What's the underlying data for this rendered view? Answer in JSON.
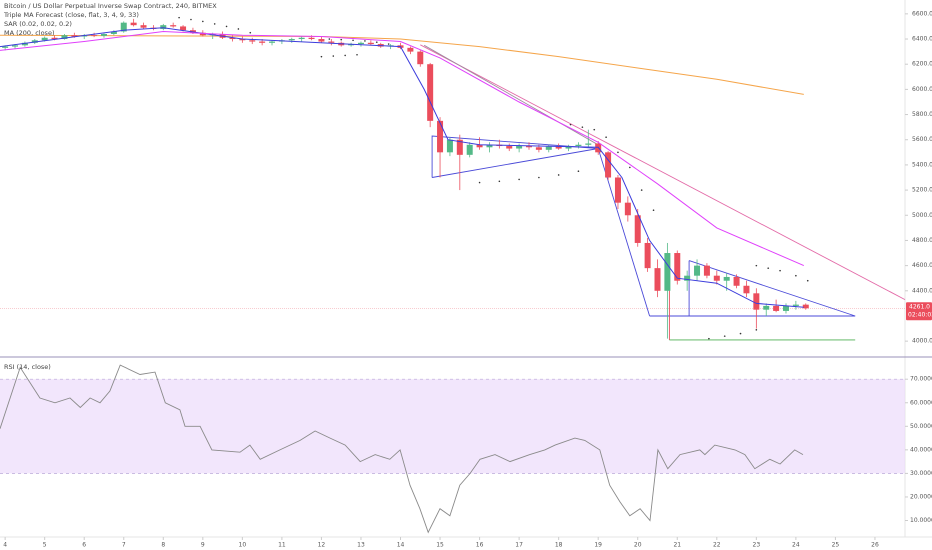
{
  "chart_data": {
    "type": "candlestick",
    "title": "Bitcoin / US Dollar Perpetual Inverse Swap Contract, 240, BITMEX",
    "up_color": "#53b987",
    "down_color": "#eb4d5c",
    "xlim": [
      3.87,
      26.76
    ],
    "xticks": [
      4,
      5,
      6,
      7,
      8,
      9,
      10,
      11,
      12,
      13,
      14,
      15,
      16,
      17,
      18,
      19,
      20,
      21,
      22,
      23,
      24,
      25,
      26
    ],
    "ylim": [
      3890,
      6710
    ],
    "yticks": [
      {
        "value": 4000,
        "label": "4000.0"
      },
      {
        "value": 4400,
        "label": "4400.0"
      },
      {
        "value": 4600,
        "label": "4600.0"
      },
      {
        "value": 4800,
        "label": "4800.0"
      },
      {
        "value": 5000,
        "label": "5000.0"
      },
      {
        "value": 5200,
        "label": "5200.0"
      },
      {
        "value": 5400,
        "label": "5400.0"
      },
      {
        "value": 5600,
        "label": "5600.0"
      },
      {
        "value": 5800,
        "label": "5800.0"
      },
      {
        "value": 6000,
        "label": "6000.0"
      },
      {
        "value": 6200,
        "label": "6200.0"
      },
      {
        "value": 6400,
        "label": "6400.0"
      },
      {
        "value": 6600,
        "label": "6600.0"
      }
    ],
    "grid": false,
    "last_price": {
      "value": 4261,
      "label": "4261.0"
    },
    "countdown": "02:40:03",
    "candles": [
      [
        4.0,
        6330,
        6350,
        6310,
        6340
      ],
      [
        4.25,
        6340,
        6360,
        6320,
        6350
      ],
      [
        4.5,
        6350,
        6380,
        6340,
        6370
      ],
      [
        4.75,
        6370,
        6400,
        6360,
        6390
      ],
      [
        5.0,
        6390,
        6420,
        6380,
        6410
      ],
      [
        5.25,
        6410,
        6430,
        6390,
        6400
      ],
      [
        5.5,
        6400,
        6440,
        6395,
        6430
      ],
      [
        5.75,
        6430,
        6450,
        6410,
        6420
      ],
      [
        6.0,
        6420,
        6440,
        6400,
        6430
      ],
      [
        6.25,
        6430,
        6450,
        6415,
        6425
      ],
      [
        6.5,
        6425,
        6445,
        6410,
        6440
      ],
      [
        6.75,
        6440,
        6470,
        6430,
        6460
      ],
      [
        7.0,
        6460,
        6540,
        6450,
        6530
      ],
      [
        7.25,
        6530,
        6560,
        6500,
        6510
      ],
      [
        7.5,
        6510,
        6530,
        6480,
        6490
      ],
      [
        7.75,
        6490,
        6510,
        6470,
        6480
      ],
      [
        8.0,
        6480,
        6520,
        6470,
        6510
      ],
      [
        8.25,
        6510,
        6530,
        6490,
        6500
      ],
      [
        8.5,
        6500,
        6510,
        6460,
        6470
      ],
      [
        8.75,
        6470,
        6490,
        6440,
        6450
      ],
      [
        9.0,
        6450,
        6470,
        6420,
        6430
      ],
      [
        9.25,
        6430,
        6450,
        6400,
        6440
      ],
      [
        9.5,
        6440,
        6460,
        6400,
        6410
      ],
      [
        9.75,
        6410,
        6430,
        6380,
        6400
      ],
      [
        10.0,
        6400,
        6420,
        6370,
        6390
      ],
      [
        10.25,
        6390,
        6410,
        6360,
        6380
      ],
      [
        10.5,
        6380,
        6400,
        6350,
        6370
      ],
      [
        10.75,
        6370,
        6390,
        6350,
        6380
      ],
      [
        11.0,
        6380,
        6400,
        6360,
        6390
      ],
      [
        11.25,
        6390,
        6410,
        6370,
        6400
      ],
      [
        11.5,
        6400,
        6420,
        6380,
        6410
      ],
      [
        11.75,
        6410,
        6430,
        6390,
        6400
      ],
      [
        12.0,
        6400,
        6420,
        6370,
        6380
      ],
      [
        12.25,
        6380,
        6400,
        6350,
        6370
      ],
      [
        12.5,
        6370,
        6380,
        6340,
        6350
      ],
      [
        12.75,
        6350,
        6370,
        6340,
        6360
      ],
      [
        13.0,
        6360,
        6380,
        6340,
        6370
      ],
      [
        13.25,
        6370,
        6390,
        6350,
        6360
      ],
      [
        13.5,
        6360,
        6370,
        6330,
        6340
      ],
      [
        13.75,
        6340,
        6360,
        6320,
        6350
      ],
      [
        14.0,
        6350,
        6370,
        6320,
        6330
      ],
      [
        14.25,
        6330,
        6340,
        6280,
        6300
      ],
      [
        14.5,
        6300,
        6310,
        6180,
        6200
      ],
      [
        14.75,
        6200,
        6210,
        5700,
        5750
      ],
      [
        15.0,
        5750,
        5780,
        5300,
        5500
      ],
      [
        15.25,
        5500,
        5620,
        5470,
        5600
      ],
      [
        15.5,
        5600,
        5640,
        5200,
        5480
      ],
      [
        15.75,
        5480,
        5580,
        5460,
        5560
      ],
      [
        16.0,
        5560,
        5620,
        5520,
        5540
      ],
      [
        16.25,
        5540,
        5580,
        5500,
        5560
      ],
      [
        16.5,
        5560,
        5600,
        5530,
        5550
      ],
      [
        16.75,
        5550,
        5570,
        5510,
        5530
      ],
      [
        17.0,
        5530,
        5570,
        5500,
        5550
      ],
      [
        17.25,
        5550,
        5580,
        5520,
        5540
      ],
      [
        17.5,
        5540,
        5560,
        5500,
        5520
      ],
      [
        17.75,
        5520,
        5560,
        5500,
        5545
      ],
      [
        18.0,
        5545,
        5570,
        5520,
        5530
      ],
      [
        18.25,
        5530,
        5560,
        5510,
        5550
      ],
      [
        18.5,
        5550,
        5580,
        5530,
        5560
      ],
      [
        18.75,
        5560,
        5680,
        5540,
        5570
      ],
      [
        19.0,
        5570,
        5590,
        5480,
        5500
      ],
      [
        19.25,
        5500,
        5510,
        5280,
        5300
      ],
      [
        19.5,
        5300,
        5320,
        5050,
        5100
      ],
      [
        19.75,
        5100,
        5150,
        4950,
        5000
      ],
      [
        20.0,
        5000,
        5050,
        4750,
        4780
      ],
      [
        20.25,
        4780,
        4820,
        4550,
        4580
      ],
      [
        20.5,
        4580,
        4650,
        4350,
        4400
      ],
      [
        20.75,
        4400,
        4780,
        4020,
        4700
      ],
      [
        21.0,
        4700,
        4720,
        4450,
        4480
      ],
      [
        21.25,
        4480,
        4560,
        4400,
        4520
      ],
      [
        21.5,
        4520,
        4650,
        4480,
        4600
      ],
      [
        21.75,
        4600,
        4620,
        4500,
        4520
      ],
      [
        22.0,
        4520,
        4560,
        4450,
        4480
      ],
      [
        22.25,
        4480,
        4540,
        4400,
        4510
      ],
      [
        22.5,
        4510,
        4530,
        4420,
        4440
      ],
      [
        22.75,
        4440,
        4480,
        4350,
        4380
      ],
      [
        23.0,
        4380,
        4420,
        4100,
        4250
      ],
      [
        23.25,
        4250,
        4300,
        4200,
        4280
      ],
      [
        23.5,
        4280,
        4330,
        4230,
        4240
      ],
      [
        23.75,
        4240,
        4300,
        4220,
        4280
      ],
      [
        24.0,
        4280,
        4320,
        4250,
        4290
      ],
      [
        24.25,
        4290,
        4300,
        4250,
        4261
      ]
    ],
    "triple_ma": {
      "name": "Triple MA Forecast (close, flat, 3, 4, 9, 33)",
      "series": [
        {
          "color": "#3c3cdc",
          "points": [
            [
              3.87,
              6340
            ],
            [
              7,
              6470
            ],
            [
              8,
              6490
            ],
            [
              10,
              6400
            ],
            [
              14,
              6340
            ],
            [
              14.6,
              6000
            ],
            [
              15.2,
              5600
            ],
            [
              16,
              5560
            ],
            [
              19,
              5540
            ],
            [
              19.6,
              5300
            ],
            [
              20.3,
              4800
            ],
            [
              21,
              4500
            ],
            [
              22,
              4460
            ],
            [
              23,
              4300
            ],
            [
              24.2,
              4270
            ]
          ]
        },
        {
          "color": "#e040fb",
          "points": [
            [
              3.87,
              6310
            ],
            [
              6,
              6380
            ],
            [
              8,
              6460
            ],
            [
              10,
              6430
            ],
            [
              12,
              6420
            ],
            [
              14,
              6380
            ],
            [
              15,
              6250
            ],
            [
              17,
              5900
            ],
            [
              19,
              5580
            ],
            [
              20.5,
              5250
            ],
            [
              22,
              4900
            ],
            [
              24.2,
              4600
            ]
          ]
        }
      ]
    },
    "sar": {
      "name": "SAR (0.02, 0.02, 0.2)",
      "color": "#333333",
      "points": [
        [
          8.4,
          6570
        ],
        [
          8.7,
          6555
        ],
        [
          9.0,
          6540
        ],
        [
          9.3,
          6520
        ],
        [
          9.6,
          6500
        ],
        [
          9.9,
          6480
        ],
        [
          10.2,
          6450
        ],
        [
          12.2,
          6400
        ],
        [
          12.5,
          6395
        ],
        [
          12.8,
          6390
        ],
        [
          13.1,
          6385
        ],
        [
          13.4,
          6375
        ],
        [
          13.7,
          6360
        ],
        [
          12.0,
          6260
        ],
        [
          12.3,
          6265
        ],
        [
          12.6,
          6270
        ],
        [
          12.9,
          6275
        ],
        [
          16.0,
          5260
        ],
        [
          16.5,
          5270
        ],
        [
          17.0,
          5285
        ],
        [
          17.5,
          5300
        ],
        [
          18.0,
          5320
        ],
        [
          18.5,
          5350
        ],
        [
          18.3,
          5720
        ],
        [
          18.6,
          5700
        ],
        [
          18.9,
          5680
        ],
        [
          19.2,
          5620
        ],
        [
          19.5,
          5500
        ],
        [
          19.8,
          5380
        ],
        [
          20.1,
          5200
        ],
        [
          20.4,
          5040
        ],
        [
          21.8,
          4020
        ],
        [
          22.2,
          4040
        ],
        [
          22.6,
          4060
        ],
        [
          23.0,
          4090
        ],
        [
          23.0,
          4600
        ],
        [
          23.3,
          4580
        ],
        [
          23.6,
          4560
        ],
        [
          24.0,
          4520
        ],
        [
          24.3,
          4480
        ]
      ]
    },
    "ma": {
      "name": "MA (200, close)",
      "color": "#f5a54a",
      "points": [
        [
          3.87,
          6430
        ],
        [
          12,
          6420
        ],
        [
          14,
          6400
        ],
        [
          16,
          6340
        ],
        [
          18,
          6260
        ],
        [
          20,
          6170
        ],
        [
          22,
          6080
        ],
        [
          24.2,
          5960
        ]
      ]
    },
    "drawings": [
      {
        "color": "#4a4ad8",
        "points": [
          [
            14.8,
            5300
          ],
          [
            14.8,
            5630
          ],
          [
            19,
            5530
          ],
          [
            14.8,
            5300
          ]
        ]
      },
      {
        "color": "#4a4ad8",
        "points": [
          [
            19,
            5530
          ],
          [
            20.3,
            4200
          ]
        ]
      },
      {
        "color": "#4a4ad8",
        "points": [
          [
            21.3,
            4640
          ],
          [
            21.3,
            4200
          ],
          [
            25.5,
            4200
          ],
          [
            21.3,
            4640
          ]
        ]
      },
      {
        "color": "#4a4ad8",
        "points": [
          [
            20.3,
            4200
          ],
          [
            21.3,
            4200
          ]
        ]
      },
      {
        "color": "#e36ba8",
        "points": [
          [
            14.5,
            6354
          ],
          [
            26.76,
            4330
          ]
        ]
      },
      {
        "color": "#a08aa0",
        "points": [
          [
            14.6,
            6350
          ],
          [
            19,
            5560
          ]
        ]
      },
      {
        "color": "#4caf50",
        "points": [
          [
            20.8,
            4010
          ],
          [
            25.5,
            4010
          ]
        ]
      },
      {
        "color": "#eb4d5c",
        "points": [
          [
            20.8,
            4480
          ],
          [
            20.8,
            4010
          ]
        ]
      }
    ],
    "rsi": {
      "type": "line",
      "name": "RSI (14, close)",
      "color": "#8a8a8a",
      "band": [
        30,
        70
      ],
      "band_color": "#ecdcfb",
      "ylim": [
        3,
        79
      ],
      "yticks": [
        {
          "value": 10,
          "label": "10.0000"
        },
        {
          "value": 20,
          "label": "20.0000"
        },
        {
          "value": 30,
          "label": "30.0000"
        },
        {
          "value": 40,
          "label": "40.0000"
        },
        {
          "value": 50,
          "label": "50.0000"
        },
        {
          "value": 60,
          "label": "60.0000"
        },
        {
          "value": 70,
          "label": "70.0000"
        }
      ],
      "x": [
        3.87,
        4.38,
        4.88,
        5.26,
        5.64,
        5.9,
        6.15,
        6.4,
        6.65,
        6.91,
        7.41,
        7.79,
        8.05,
        8.42,
        8.55,
        8.93,
        9.23,
        9.94,
        10.19,
        10.45,
        10.95,
        11.46,
        11.84,
        12.22,
        12.6,
        12.98,
        13.36,
        13.73,
        13.99,
        14.24,
        14.49,
        14.7,
        15.0,
        15.25,
        15.5,
        15.76,
        16.01,
        16.39,
        16.77,
        17.27,
        17.65,
        17.91,
        18.41,
        18.66,
        19.04,
        19.29,
        19.55,
        19.8,
        20.06,
        20.31,
        20.51,
        20.76,
        21.07,
        21.57,
        21.7,
        21.95,
        22.46,
        22.71,
        22.96,
        23.34,
        23.6,
        23.97,
        24.18
      ],
      "values": [
        49,
        75,
        62,
        60,
        62,
        58,
        62,
        60,
        65,
        76,
        72,
        73,
        60,
        57,
        50,
        50,
        40,
        39,
        42,
        36,
        40,
        44,
        48,
        45,
        42,
        35,
        38,
        36,
        40,
        25,
        15,
        5,
        15,
        12,
        25,
        30,
        36,
        38,
        35,
        38,
        40,
        42,
        45,
        44,
        40,
        25,
        18,
        12,
        15,
        10,
        40,
        32,
        38,
        40,
        38,
        42,
        40,
        38,
        32,
        36,
        34,
        40,
        38
      ]
    }
  }
}
